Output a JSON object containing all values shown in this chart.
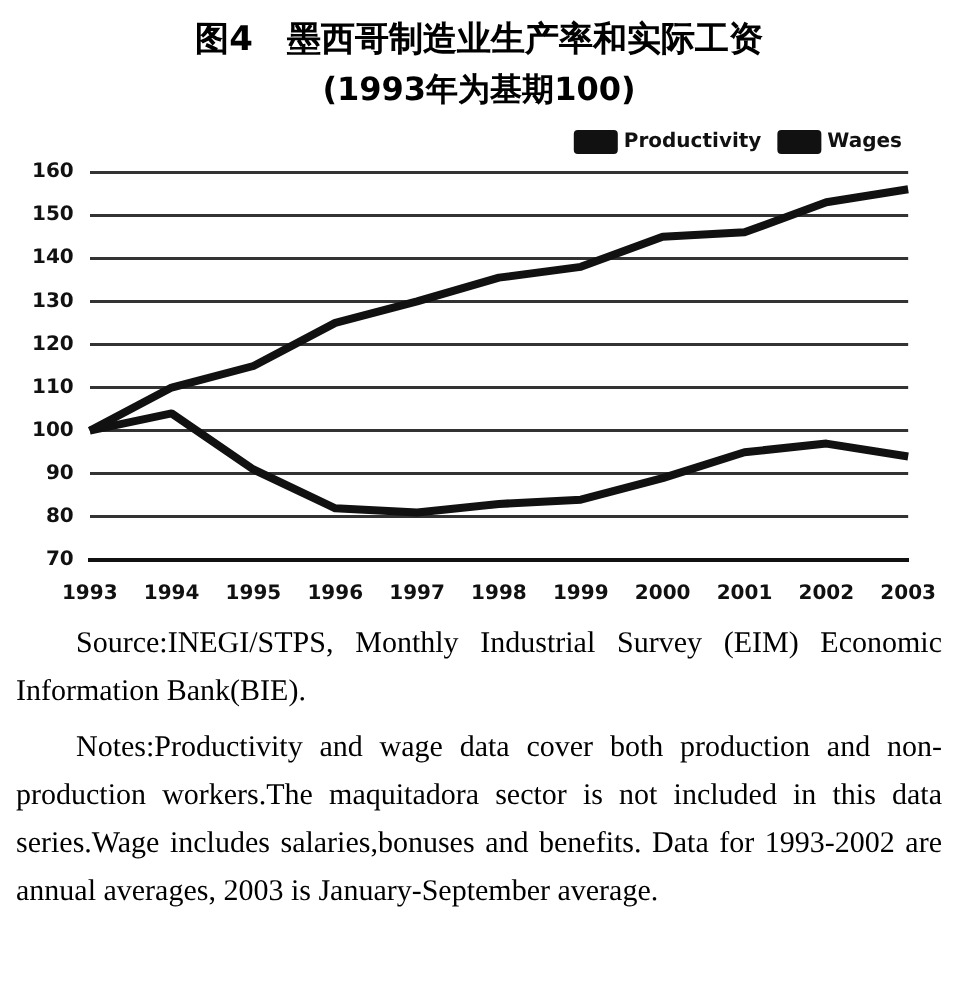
{
  "chart_data": {
    "type": "line",
    "title": "图4　墨西哥制造业生产率和实际工资",
    "subtitle": "(1993年为基期100)",
    "categories": [
      "1993",
      "1994",
      "1995",
      "1996",
      "1997",
      "1998",
      "1999",
      "2000",
      "2001",
      "2002",
      "2003"
    ],
    "series": [
      {
        "name": "Productivity",
        "color": "#111111",
        "values": [
          100,
          110,
          115,
          125,
          130,
          135.5,
          138,
          145,
          146,
          153,
          156
        ]
      },
      {
        "name": "Wages",
        "color": "#111111",
        "values": [
          100,
          104,
          91,
          82,
          81,
          83,
          84,
          89,
          95,
          97,
          94
        ]
      }
    ],
    "ylim": [
      70,
      160
    ],
    "yticks": [
      70,
      80,
      90,
      100,
      110,
      120,
      130,
      140,
      150,
      160
    ],
    "grid": "y",
    "legend": "top right",
    "marker": "none",
    "line_style": "solid",
    "annotations": [
      "Source:INEGI/STPS,  Monthly Industrial Survey (EIM)  Economic Information Bank(BIE).",
      "Notes:Productivity and wage data cover both production and non-production workers.The maquitadora sector is not included in this data series.Wage includes salaries,bonuses and benefits. Data for 1993-2002 are annual averages,  2003 is January-September average."
    ]
  }
}
